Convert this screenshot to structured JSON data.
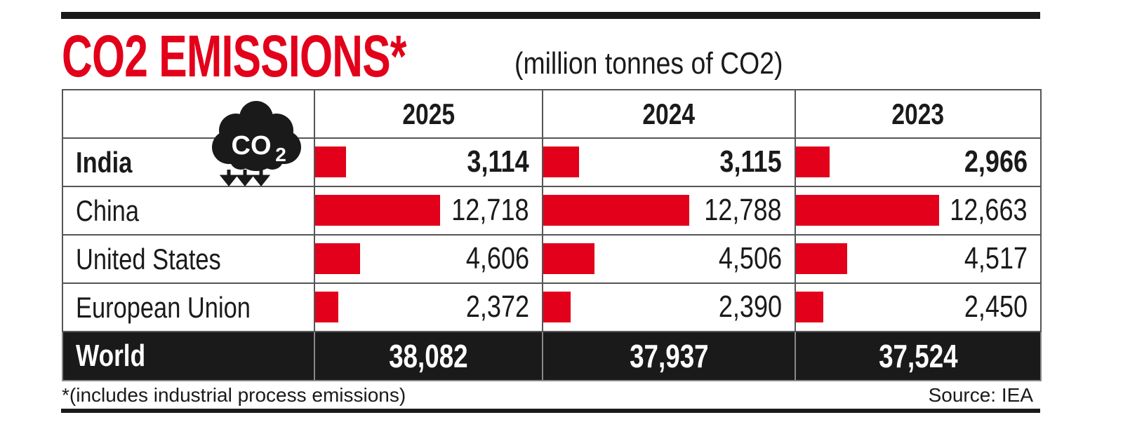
{
  "title": "CO2 EMISSIONS*",
  "subtitle": "(million tonnes of CO2)",
  "footnote": "*(includes industrial process emissions)",
  "source": "Source: IEA",
  "icon": {
    "name": "co2-cloud-icon",
    "text": "CO2"
  },
  "colors": {
    "bar": "#e2001a",
    "title": "#e2001a",
    "world_row_bg": "#1a1a1a"
  },
  "chart_data": {
    "type": "table",
    "unit": "million tonnes of CO2",
    "columns": [
      "2025",
      "2024",
      "2023"
    ],
    "rows": [
      {
        "label": "India",
        "values": [
          3114,
          3115,
          2966
        ],
        "display": [
          "3,114",
          "3,115",
          "2,966"
        ],
        "bold": true
      },
      {
        "label": "China",
        "values": [
          12718,
          12788,
          12663
        ],
        "display": [
          "12,718",
          "12,788",
          "12,663"
        ]
      },
      {
        "label": "United States",
        "values": [
          4606,
          4506,
          4517
        ],
        "display": [
          "4,606",
          "4,506",
          "4,517"
        ]
      },
      {
        "label": "European Union",
        "values": [
          2372,
          2390,
          2450
        ],
        "display": [
          "2,372",
          "2,390",
          "2,450"
        ]
      }
    ],
    "total": {
      "label": "World",
      "values": [
        38082,
        37937,
        37524
      ],
      "display": [
        "38,082",
        "37,937",
        "37,524"
      ]
    }
  }
}
